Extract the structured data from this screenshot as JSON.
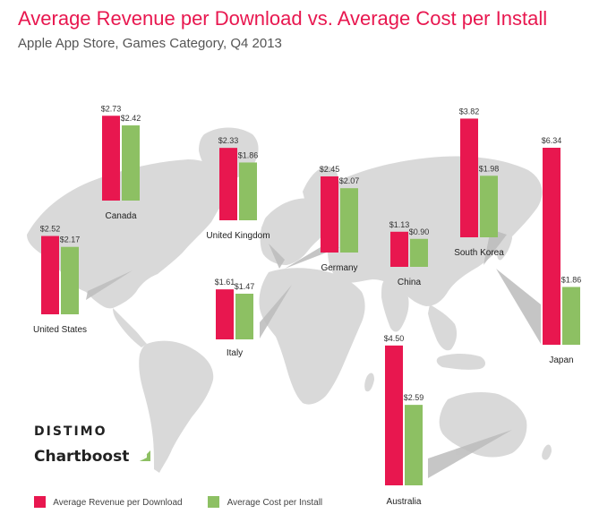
{
  "chart_data": {
    "type": "bar",
    "title": "Average Revenue per Download vs. Average Cost per Install",
    "subtitle": "Apple App Store, Games Category, Q4 2013",
    "categories": [
      "United States",
      "Canada",
      "United Kingdom",
      "Germany",
      "Italy",
      "China",
      "South Korea",
      "Japan",
      "Australia"
    ],
    "series": [
      {
        "name": "Average Revenue per Download",
        "color": "#e8174f",
        "values": [
          2.52,
          2.73,
          2.33,
          2.45,
          1.61,
          1.13,
          3.82,
          6.34,
          4.5
        ],
        "labels": [
          "$2.52",
          "$2.73",
          "$2.33",
          "$2.45",
          "$1.61",
          "$1.13",
          "$3.82",
          "$6.34",
          "$4.50"
        ]
      },
      {
        "name": "Average Cost per Install",
        "color": "#8dc063",
        "values": [
          2.17,
          2.42,
          1.86,
          2.07,
          1.47,
          0.9,
          1.98,
          1.86,
          2.59
        ],
        "labels": [
          "$2.17",
          "$2.42",
          "$1.86",
          "$2.07",
          "$1.47",
          "$0.90",
          "$1.98",
          "$1.86",
          "$2.59"
        ]
      }
    ],
    "legend_position": "bottom-left",
    "grid": false,
    "background": "world-map"
  },
  "branding": {
    "distimo": "DISTIMO",
    "chartboost": "Chartboost"
  }
}
